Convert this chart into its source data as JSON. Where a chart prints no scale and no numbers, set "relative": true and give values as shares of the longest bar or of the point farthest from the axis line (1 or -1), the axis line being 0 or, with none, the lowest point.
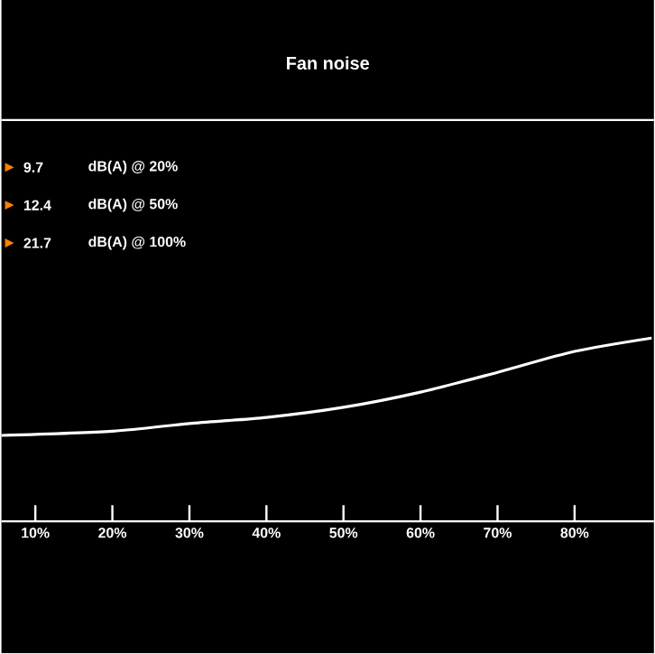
{
  "chart_data": {
    "type": "line",
    "title": "Fan noise",
    "x": [
      5.6,
      20,
      30,
      40,
      50,
      60,
      70,
      80,
      90
    ],
    "series": [
      {
        "color": "#ffffff",
        "values": [
          0.469,
          0.492,
          0.534,
          0.567,
          0.622,
          0.705,
          0.813,
          0.927,
          1
        ]
      }
    ],
    "relative": true,
    "xlim": [
      5.6,
      90.3
    ],
    "xticks": [
      {
        "value": 10,
        "label": "10%"
      },
      {
        "value": 20,
        "label": "20%"
      },
      {
        "value": 30,
        "label": "30%"
      },
      {
        "value": 40,
        "label": "40%"
      },
      {
        "value": 50,
        "label": "50%"
      },
      {
        "value": 60,
        "label": "60%"
      },
      {
        "value": 70,
        "label": "70%"
      },
      {
        "value": 80,
        "label": "80%"
      }
    ],
    "annotations": [
      "9.7",
      "dB(A) @ 20%",
      "12.4",
      "dB(A) @ 50%",
      "21.7",
      "dB(A) @ 100%"
    ]
  }
}
